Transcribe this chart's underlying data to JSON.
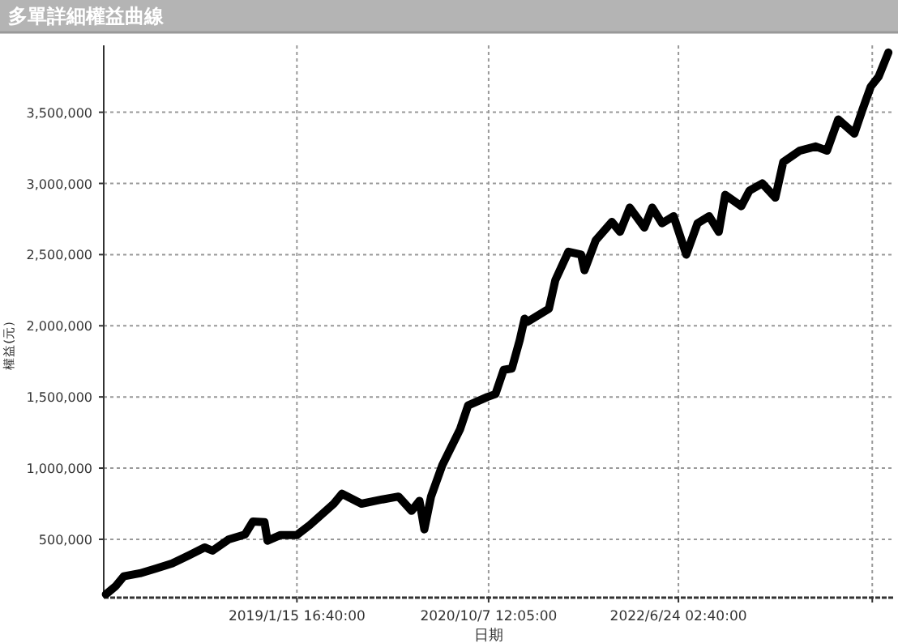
{
  "chart_data": {
    "type": "line",
    "title": "多單詳細權益曲線",
    "xlabel": "日期",
    "ylabel": "權益(元)",
    "xlim": [
      "2017-04-20",
      "2024-06-05"
    ],
    "xticks": [
      {
        "value": "2019-01-15T16:40",
        "label": "2019/1/15 16:40:00"
      },
      {
        "value": "2020-10-07T12:05",
        "label": "2020/10/7 12:05:00"
      },
      {
        "value": "2022-06-24T02:40",
        "label": "2022/6/24 02:40:00"
      },
      {
        "value": "2024-03-23",
        "label": null
      }
    ],
    "ylim": [
      90000,
      3970000
    ],
    "yticks": [
      {
        "value": 500000,
        "label": "500,000"
      },
      {
        "value": 1000000,
        "label": "1,000,000"
      },
      {
        "value": 1500000,
        "label": "1,500,000"
      },
      {
        "value": 2000000,
        "label": "2,000,000"
      },
      {
        "value": 2500000,
        "label": "2,500,000"
      },
      {
        "value": 3000000,
        "label": "3,000,000"
      },
      {
        "value": 3500000,
        "label": "3,500,000"
      }
    ],
    "grid": true,
    "series": [
      {
        "color": "#000000",
        "x": [
          "2017-04-27",
          "2017-05-29",
          "2017-06-25",
          "2017-08-17",
          "2017-10-09",
          "2017-12-01",
          "2018-01-24",
          "2018-03-18",
          "2018-04-13",
          "2018-06-06",
          "2018-07-29",
          "2018-08-24",
          "2018-10-01",
          "2018-10-11",
          "2018-11-23",
          "2019-01-15",
          "2019-02-27",
          "2019-05-17",
          "2019-06-13",
          "2019-08-16",
          "2019-10-24",
          "2019-12-16",
          "2020-01-28",
          "2020-02-23",
          "2020-03-10",
          "2020-04-01",
          "2020-05-08",
          "2020-07-05",
          "2020-08-01",
          "2020-10-04",
          "2020-10-30",
          "2020-11-26",
          "2020-12-23",
          "2021-01-18",
          "2021-02-03",
          "2021-02-14",
          "2021-04-24",
          "2021-05-15",
          "2021-06-27",
          "2021-08-08",
          "2021-08-19",
          "2021-09-25",
          "2021-11-17",
          "2021-12-14",
          "2022-01-15",
          "2022-03-04",
          "2022-03-30",
          "2022-05-01",
          "2022-06-08",
          "2022-07-20",
          "2022-08-26",
          "2022-10-03",
          "2022-11-04",
          "2022-11-25",
          "2023-01-17",
          "2023-02-13",
          "2023-03-27",
          "2023-05-09",
          "2023-06-04",
          "2023-07-28",
          "2023-09-19",
          "2023-10-26",
          "2023-12-02",
          "2024-01-24",
          "2024-02-20",
          "2024-03-18",
          "2024-04-13",
          "2024-05-15"
        ],
        "values": [
          114000,
          170000,
          240000,
          261000,
          295000,
          330000,
          386000,
          443000,
          420000,
          500000,
          534000,
          625000,
          620000,
          490000,
          530000,
          530000,
          600000,
          750000,
          820000,
          750000,
          780000,
          800000,
          700000,
          770000,
          570000,
          800000,
          1020000,
          1270000,
          1440000,
          1500000,
          1520000,
          1690000,
          1700000,
          1900000,
          2050000,
          2030000,
          2120000,
          2320000,
          2520000,
          2500000,
          2390000,
          2600000,
          2730000,
          2660000,
          2830000,
          2690000,
          2830000,
          2720000,
          2770000,
          2500000,
          2720000,
          2770000,
          2660000,
          2920000,
          2840000,
          2950000,
          3000000,
          2900000,
          3150000,
          3230000,
          3260000,
          3230000,
          3450000,
          3350000,
          3520000,
          3680000,
          3750000,
          3920000
        ]
      }
    ]
  }
}
